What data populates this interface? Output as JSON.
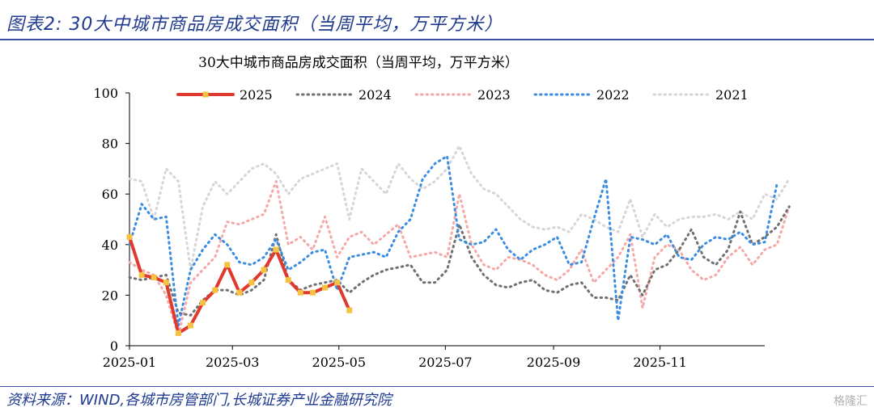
{
  "figure_title": "图表2: 30大中城市商品房成交面积（当周平均，万平方米）",
  "source": "资料来源：WIND,各城市房管部门,长城证券产业金融研究院",
  "watermark": "格隆汇",
  "colors": {
    "s2025": "#e03a2e",
    "s2025_marker": "#f5c242",
    "s2024": "#707070",
    "s2023": "#f4a8a8",
    "s2022": "#3a8de0",
    "s2021": "#d6d6d6",
    "header_blue": "#1f3a8f"
  },
  "chart_data": {
    "type": "line",
    "title": "30大中城市商品房成交面积（当周平均，万平方米）",
    "xlabel": "",
    "ylabel": "",
    "ylim": [
      0,
      100
    ],
    "yticks": [
      0,
      20,
      40,
      60,
      80,
      100
    ],
    "xlim": [
      "2025-01-01",
      "2025-12-31"
    ],
    "xticks": [
      "2025-01",
      "2025-03",
      "2025-05",
      "2025-07",
      "2025-09",
      "2025-11"
    ],
    "grid": false,
    "legend_position": "top",
    "x_step_days": 7,
    "x_start": "2025-01-01",
    "series": [
      {
        "name": "2025",
        "style": "solid-marker",
        "values": [
          43,
          28,
          27,
          25,
          5,
          8,
          17,
          22,
          32,
          21,
          25,
          30,
          38,
          26,
          21,
          21,
          23,
          25,
          14
        ]
      },
      {
        "name": "2024",
        "style": "dotted",
        "values": [
          27,
          26,
          27,
          28,
          13,
          12,
          18,
          22,
          22,
          20,
          22,
          26,
          44,
          26,
          22,
          24,
          25,
          26,
          21,
          25,
          28,
          30,
          31,
          32,
          25,
          25,
          30,
          48,
          35,
          28,
          24,
          23,
          25,
          26,
          22,
          21,
          24,
          25,
          19,
          19,
          18,
          28,
          20,
          30,
          32,
          38,
          46,
          35,
          32,
          38,
          53,
          40,
          43,
          47,
          55
        ]
      },
      {
        "name": "2023",
        "style": "dotted",
        "values": [
          33,
          30,
          28,
          20,
          4,
          25,
          30,
          35,
          49,
          48,
          50,
          52,
          65,
          40,
          43,
          38,
          51,
          35,
          43,
          45,
          40,
          44,
          48,
          35,
          36,
          37,
          35,
          60,
          40,
          32,
          30,
          35,
          34,
          32,
          28,
          26,
          30,
          38,
          25,
          30,
          35,
          44,
          15,
          35,
          40,
          38,
          30,
          26,
          28,
          35,
          39,
          32,
          38,
          40,
          55
        ]
      },
      {
        "name": "2022",
        "style": "dotted",
        "values": [
          40,
          56,
          50,
          51,
          8,
          30,
          38,
          44,
          40,
          33,
          32,
          35,
          42,
          30,
          33,
          37,
          38,
          22,
          35,
          36,
          37,
          35,
          45,
          50,
          66,
          72,
          75,
          42,
          40,
          41,
          46,
          38,
          34,
          38,
          40,
          43,
          32,
          33,
          50,
          66,
          10,
          43,
          42,
          40,
          44,
          35,
          34,
          40,
          43,
          42,
          45,
          40,
          41,
          64
        ]
      },
      {
        "name": "2021",
        "style": "dotted",
        "values": [
          66,
          65,
          50,
          70,
          65,
          30,
          55,
          65,
          60,
          65,
          70,
          72,
          68,
          60,
          66,
          68,
          70,
          72,
          50,
          70,
          65,
          60,
          72,
          66,
          62,
          65,
          70,
          79,
          68,
          62,
          60,
          55,
          50,
          47,
          46,
          47,
          45,
          52,
          50,
          47,
          45,
          58,
          43,
          52,
          47,
          50,
          51,
          51,
          52,
          50,
          53,
          50,
          60,
          58,
          66
        ]
      }
    ]
  }
}
